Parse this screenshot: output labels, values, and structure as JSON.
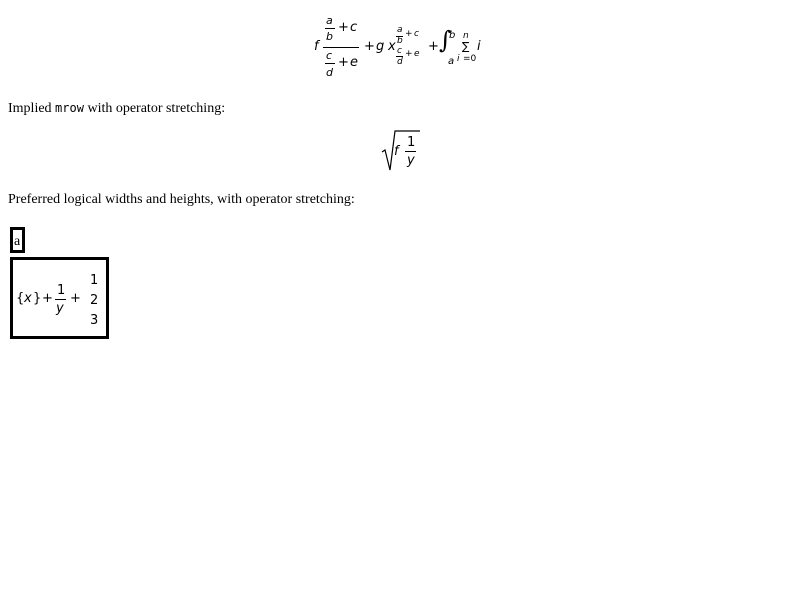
{
  "formula1": {
    "f": "f",
    "a": "a",
    "b": "b",
    "plus": "+",
    "c": "c",
    "d": "d",
    "e": "e",
    "g": "g",
    "x": "x",
    "integral": "∫",
    "sum": "∑",
    "n": "n",
    "i": "i",
    "equals_zero": "=0"
  },
  "paragraph1": {
    "prefix": "Implied ",
    "code": "mrow",
    "suffix": " with operator stretching:"
  },
  "formula2": {
    "radical": "√",
    "f": "f",
    "one": "1",
    "y": "y"
  },
  "paragraph2": {
    "text": "Preferred logical widths and heights, with operator stretching:"
  },
  "box_small": {
    "text": "a"
  },
  "box_large": {
    "open_brace": "{",
    "x": "x",
    "close_brace": "}",
    "plus": "+",
    "one": "1",
    "y": "y",
    "column": [
      "1",
      "2",
      "3"
    ]
  }
}
